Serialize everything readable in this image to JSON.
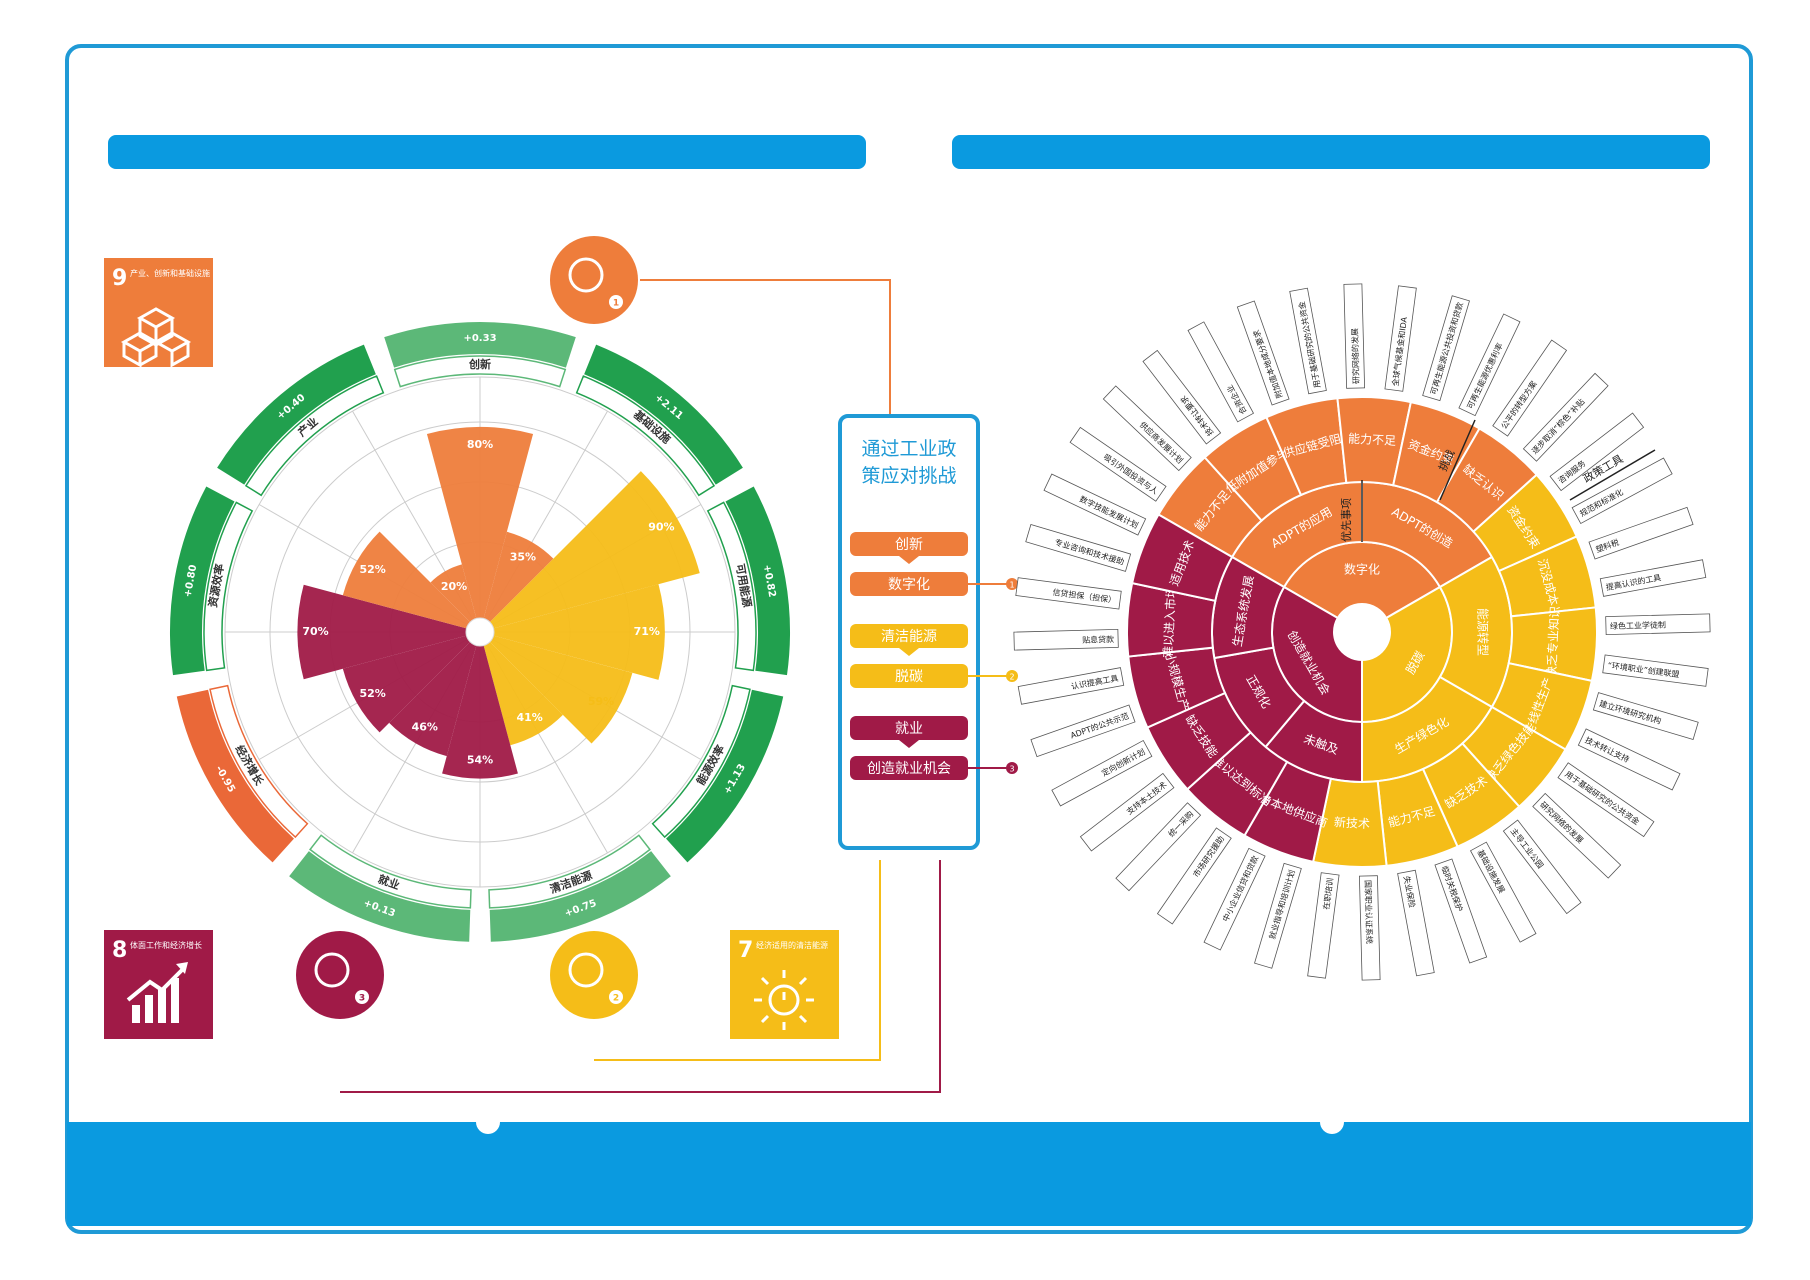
{
  "colors": {
    "frame_blue": "#1f9ad6",
    "bar_blue": "#0a9ae0",
    "orange": "#ee7d3b",
    "orange_light": "#f2a46f",
    "green": "#21a04e",
    "green_light": "#5cb878",
    "yellow": "#f5bd18",
    "maroon": "#a01a47",
    "red_orange": "#ea6838",
    "grid": "#cccccc"
  },
  "sdg9": {
    "number": "9",
    "title": "产业、创新和基础设施",
    "icon": "cubes-icon"
  },
  "sdg8": {
    "number": "8",
    "title": "体面工作和经济增长",
    "icon": "growth-chart-icon"
  },
  "sdg7": {
    "number": "7",
    "title": "经济适用的清洁能源",
    "icon": "sun-power-icon"
  },
  "left_chart": {
    "ring_segments": [
      {
        "label": "创新",
        "value": "+0.33",
        "color": "green_light"
      },
      {
        "label": "基础设施",
        "value": "+2.11",
        "color": "green"
      },
      {
        "label": "可用能源",
        "value": "+0.82",
        "color": "green"
      },
      {
        "label": "能源效率",
        "value": "+1.13",
        "color": "green"
      },
      {
        "label": "清洁能源",
        "value": "+0.75",
        "color": "green_light"
      },
      {
        "label": "就业",
        "value": "+0.13",
        "color": "green_light"
      },
      {
        "label": "经济增长",
        "value": "-0.95",
        "color": "red_orange"
      },
      {
        "label": "资源效率",
        "value": "+0.80",
        "color": "green"
      },
      {
        "label": "产业",
        "value": "+0.40",
        "color": "green"
      }
    ],
    "wedges": [
      {
        "label": "80%",
        "value": 80,
        "color": "orange"
      },
      {
        "label": "35%",
        "value": 35,
        "color": "orange"
      },
      {
        "label": "90%",
        "value": 90,
        "color": "yellow"
      },
      {
        "label": "71%",
        "value": 71,
        "color": "yellow"
      },
      {
        "label": "59%",
        "value": 59,
        "color": "yellow"
      },
      {
        "label": "41%",
        "value": 41,
        "color": "yellow"
      },
      {
        "label": "54%",
        "value": 54,
        "color": "maroon"
      },
      {
        "label": "46%",
        "value": 46,
        "color": "maroon"
      },
      {
        "label": "52%",
        "value": 52,
        "color": "maroon"
      },
      {
        "label": "70%",
        "value": 70,
        "color": "maroon"
      },
      {
        "label": "52%",
        "value": 52,
        "color": "orange"
      },
      {
        "label": "20%",
        "value": 20,
        "color": "orange"
      }
    ],
    "icons": [
      {
        "name": "lightbulb-icon",
        "num": "1"
      },
      {
        "name": "plug-leaf-icon",
        "num": "2"
      },
      {
        "name": "worker-tools-icon",
        "num": "3"
      }
    ]
  },
  "center_box": {
    "title_line1": "通过工业政",
    "title_line2": "策应对挑战",
    "items": [
      {
        "top": "创新",
        "bottom": "数字化",
        "num": "1",
        "color": "orange"
      },
      {
        "top": "清洁能源",
        "bottom": "脱碳",
        "num": "2",
        "color": "yellow"
      },
      {
        "top": "就业",
        "bottom": "创造就业机会",
        "num": "3",
        "color": "maroon"
      }
    ]
  },
  "right_chart": {
    "inner": [
      {
        "label": "数字化",
        "color": "orange"
      },
      {
        "label": "脱碳",
        "color": "yellow"
      },
      {
        "label": "创造就业机会",
        "color": "maroon"
      }
    ],
    "middle": [
      {
        "label": "ADPT的创造",
        "color": "orange"
      },
      {
        "label": "ADPT的应用",
        "color": "orange"
      },
      {
        "label": "能源转型",
        "color": "yellow"
      },
      {
        "label": "生产绿色化",
        "color": "yellow"
      },
      {
        "label": "未触及",
        "color": "maroon"
      },
      {
        "label": "正规化",
        "color": "maroon"
      },
      {
        "label": "生态系统发展",
        "color": "maroon"
      }
    ],
    "outer": [
      {
        "label": "能力不足",
        "color": "orange"
      },
      {
        "label": "低附加值参与",
        "color": "orange"
      },
      {
        "label": "供应链受阻",
        "color": "orange"
      },
      {
        "label": "能力不足",
        "color": "orange"
      },
      {
        "label": "资金约束",
        "color": "orange"
      },
      {
        "label": "缺乏认识",
        "color": "orange"
      },
      {
        "label": "资金约束",
        "color": "yellow"
      },
      {
        "label": "沉没成本",
        "color": "yellow"
      },
      {
        "label": "缺乏专业知识",
        "color": "yellow"
      },
      {
        "label": "线性生产",
        "color": "yellow"
      },
      {
        "label": "缺乏绿色技能",
        "color": "yellow"
      },
      {
        "label": "缺乏技术",
        "color": "yellow"
      },
      {
        "label": "能力不足",
        "color": "yellow"
      },
      {
        "label": "新技术",
        "color": "yellow"
      },
      {
        "label": "与本地供应商联系有限",
        "color": "maroon"
      },
      {
        "label": "难以达到标准",
        "color": "maroon"
      },
      {
        "label": "缺乏技能",
        "color": "maroon"
      },
      {
        "label": "小规模生产",
        "color": "maroon"
      },
      {
        "label": "难以进入市场",
        "color": "maroon"
      },
      {
        "label": "适用技术",
        "color": "maroon"
      }
    ],
    "leaves": [
      "技术转让要求",
      "合资企业",
      "附加值本地成分要求",
      "用于基础研究的公共资金",
      "研究网络的发展",
      "全球气候基金和IDA",
      "可再生能源公共投资和贷款",
      "可再生能源优惠利率",
      "公平的转型方案",
      "逐步取消“棕色”补贴",
      "咨询服务",
      "规范和标准化",
      "塑料税",
      "提高认识的工具",
      "绿色工业学徒制",
      "“环境职业”创建联盟",
      "建立环境研究机构",
      "技术转让支持",
      "用于基础研究的公共资金",
      "研究网络的发展",
      "主导工业公园",
      "基础设施发展",
      "临时关税保护",
      "失业保险",
      "国家职业认证系统",
      "在职培训",
      "就业指导和培训计划",
      "中小企业信贷和贷款",
      "市场研究援助",
      "统一采购",
      "支持本土技术",
      "定向创新计划",
      "ADPT的公共示范",
      "认识提高工具",
      "贴息贷款",
      "信贷担保（担保）",
      "专业咨询和技术援助",
      "数字技能发展计划",
      "吸引外国投资与人",
      "供应商发展计划"
    ],
    "annotations": {
      "priority": "优先事项",
      "challenge": "挑战",
      "policy_tool": "政策工具"
    }
  }
}
